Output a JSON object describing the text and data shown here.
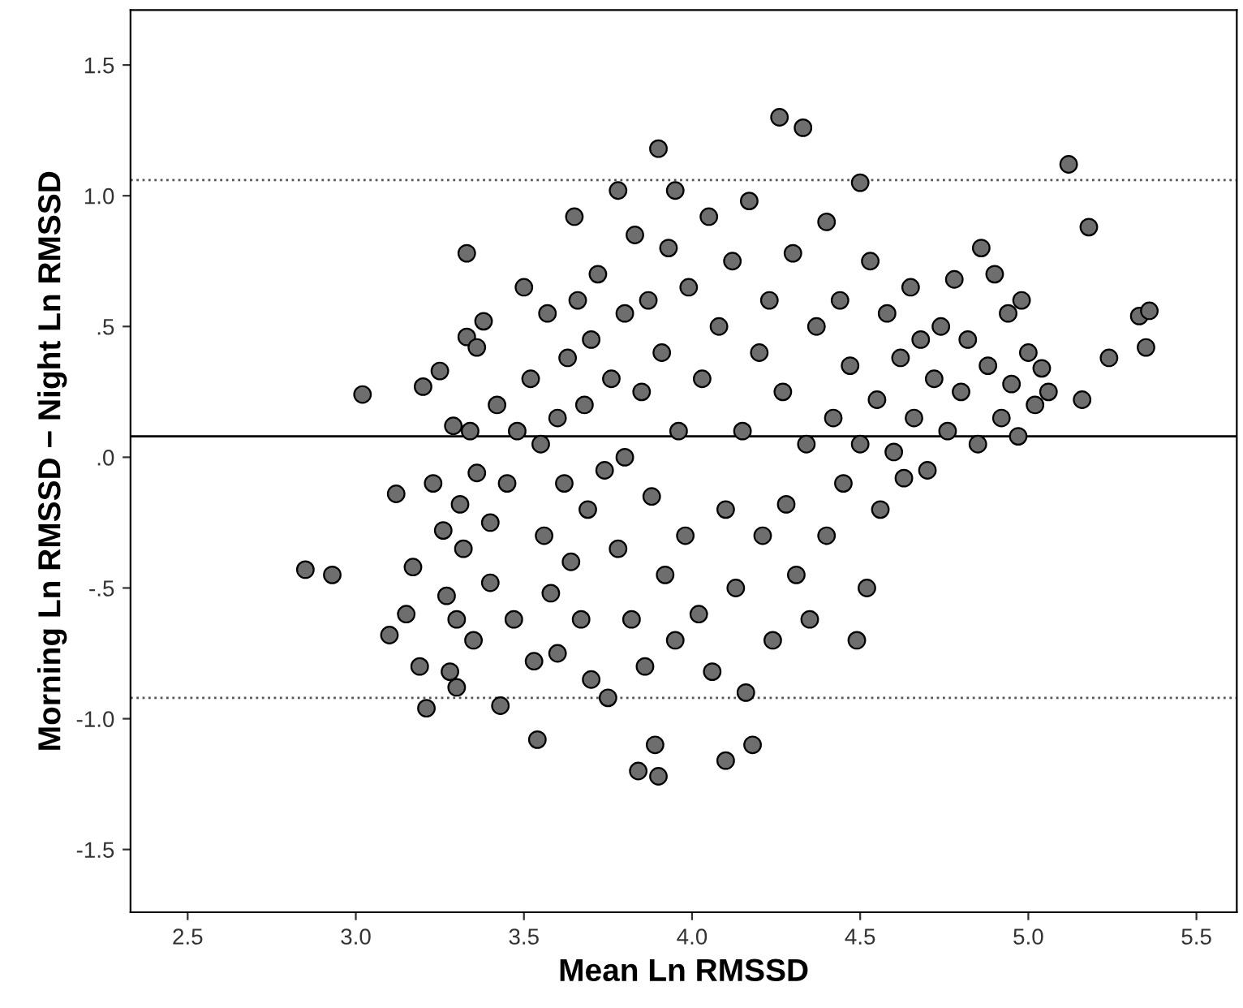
{
  "chart_data": {
    "type": "scatter",
    "xlabel": "Mean Ln RMSSD",
    "ylabel": "Morning Ln RMSSD − Night Ln RMSSD",
    "xlim": [
      2.33,
      5.62
    ],
    "ylim": [
      -1.74,
      1.71
    ],
    "xticks": [
      2.5,
      {
        "value": 3,
        "label": "3.0"
      },
      3.5,
      {
        "value": 4,
        "label": "4.0"
      },
      4.5,
      {
        "value": 5,
        "label": "5.0"
      },
      5.5
    ],
    "yticks": [
      {
        "value": -1.5,
        "label": "-1.5"
      },
      {
        "value": -1.0,
        "label": "-1.0"
      },
      {
        "value": -0.5,
        "label": "-.5"
      },
      {
        "value": 0.0,
        "label": ".0"
      },
      {
        "value": 0.5,
        "label": ".5"
      },
      {
        "value": 1.0,
        "label": "1.0"
      },
      {
        "value": 1.5,
        "label": "1.5"
      }
    ],
    "grid": false,
    "marker": "circle",
    "ref_lines": [
      {
        "axis": "y",
        "value": 0.08,
        "line_style": "solid",
        "color": "#000000"
      },
      {
        "axis": "y",
        "value": 1.06,
        "line_style": "dotted",
        "color": "#555555"
      },
      {
        "axis": "y",
        "value": -0.92,
        "line_style": "dotted",
        "color": "#555555"
      }
    ],
    "series": [
      {
        "color": "#6e6e6e",
        "x": [
          2.85,
          2.93,
          3.02,
          3.1,
          3.12,
          3.15,
          3.17,
          3.19,
          3.2,
          3.21,
          3.23,
          3.25,
          3.26,
          3.27,
          3.28,
          3.29,
          3.3,
          3.3,
          3.31,
          3.32,
          3.33,
          3.34,
          3.35,
          3.36,
          3.38,
          3.4,
          3.4,
          3.42,
          3.43,
          3.45,
          3.47,
          3.48,
          3.33,
          3.36,
          3.5,
          3.52,
          3.53,
          3.54,
          3.55,
          3.56,
          3.57,
          3.58,
          3.6,
          3.6,
          3.62,
          3.63,
          3.64,
          3.65,
          3.66,
          3.67,
          3.68,
          3.69,
          3.7,
          3.7,
          3.72,
          3.74,
          3.75,
          3.76,
          3.78,
          3.78,
          3.8,
          3.8,
          3.82,
          3.83,
          3.84,
          3.85,
          3.86,
          3.87,
          3.88,
          3.89,
          3.9,
          3.9,
          3.91,
          3.92,
          3.93,
          3.95,
          3.95,
          3.96,
          3.98,
          3.99,
          4.02,
          4.03,
          4.05,
          4.06,
          4.08,
          4.1,
          4.1,
          4.12,
          4.13,
          4.15,
          4.16,
          4.17,
          4.18,
          4.2,
          4.21,
          4.23,
          4.24,
          4.26,
          4.27,
          4.28,
          4.3,
          4.31,
          4.33,
          4.34,
          4.35,
          4.37,
          4.4,
          4.4,
          4.42,
          4.44,
          4.45,
          4.47,
          4.49,
          4.5,
          4.5,
          4.52,
          4.53,
          4.55,
          4.56,
          4.58,
          4.6,
          4.62,
          4.63,
          4.65,
          4.66,
          4.68,
          4.7,
          4.72,
          4.74,
          4.76,
          4.78,
          4.8,
          4.82,
          4.85,
          4.86,
          4.88,
          4.9,
          4.92,
          4.94,
          4.95,
          4.97,
          4.98,
          5.0,
          5.02,
          5.04,
          5.06,
          5.12,
          5.16,
          5.18,
          5.24,
          5.33,
          5.36,
          5.35
        ],
        "values": [
          -0.43,
          -0.45,
          0.24,
          -0.68,
          -0.14,
          -0.6,
          -0.42,
          -0.8,
          0.27,
          -0.96,
          -0.1,
          0.33,
          -0.28,
          -0.53,
          -0.82,
          0.12,
          -0.62,
          -0.88,
          -0.18,
          -0.35,
          0.46,
          0.1,
          -0.7,
          -0.06,
          0.52,
          -0.25,
          -0.48,
          0.2,
          -0.95,
          -0.1,
          -0.62,
          0.1,
          0.78,
          0.42,
          0.65,
          0.3,
          -0.78,
          -1.08,
          0.05,
          -0.3,
          0.55,
          -0.52,
          0.15,
          -0.75,
          -0.1,
          0.38,
          -0.4,
          0.92,
          0.6,
          -0.62,
          0.2,
          -0.2,
          -0.85,
          0.45,
          0.7,
          -0.05,
          -0.92,
          0.3,
          1.02,
          -0.35,
          0.55,
          0.0,
          -0.62,
          0.85,
          -1.2,
          0.25,
          -0.8,
          0.6,
          -0.15,
          -1.1,
          1.18,
          -1.22,
          0.4,
          -0.45,
          0.8,
          1.02,
          -0.7,
          0.1,
          -0.3,
          0.65,
          -0.6,
          0.3,
          0.92,
          -0.82,
          0.5,
          -1.16,
          -0.2,
          0.75,
          -0.5,
          0.1,
          -0.9,
          0.98,
          -1.1,
          0.4,
          -0.3,
          0.6,
          -0.7,
          1.3,
          0.25,
          -0.18,
          0.78,
          -0.45,
          1.26,
          0.05,
          -0.62,
          0.5,
          0.9,
          -0.3,
          0.15,
          0.6,
          -0.1,
          0.35,
          -0.7,
          1.05,
          0.05,
          -0.5,
          0.75,
          0.22,
          -0.2,
          0.55,
          0.02,
          0.38,
          -0.08,
          0.65,
          0.15,
          0.45,
          -0.05,
          0.3,
          0.5,
          0.1,
          0.68,
          0.25,
          0.45,
          0.05,
          0.8,
          0.35,
          0.7,
          0.15,
          0.55,
          0.28,
          0.08,
          0.6,
          0.4,
          0.2,
          0.34,
          0.25,
          1.12,
          0.22,
          0.88,
          0.38,
          0.54,
          0.56,
          0.42
        ]
      }
    ]
  }
}
